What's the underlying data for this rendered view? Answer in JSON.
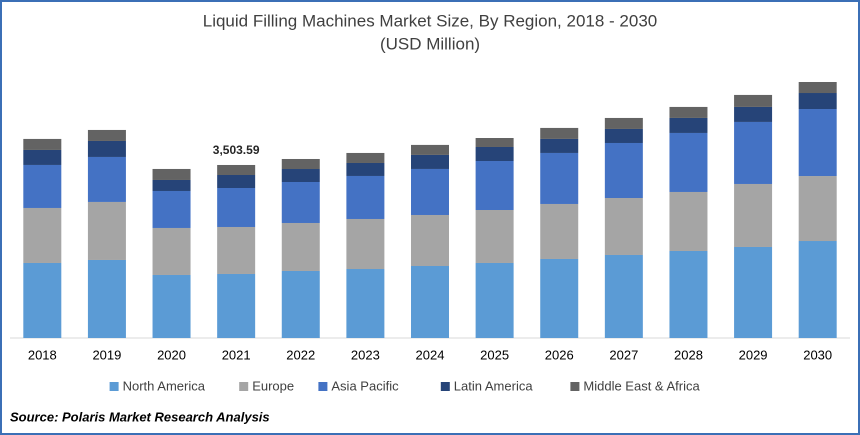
{
  "chart_data": {
    "type": "stacked-bar",
    "title": "Liquid Filling Machines Market Size, By Region, 2018 - 2030",
    "subtitle": "(USD Million)",
    "categories": [
      "2018",
      "2019",
      "2020",
      "2021",
      "2022",
      "2023",
      "2024",
      "2025",
      "2026",
      "2027",
      "2028",
      "2029",
      "2030"
    ],
    "series": [
      {
        "name": "North America",
        "color": "#5b9bd5",
        "values": [
          1519,
          1580,
          1276,
          1296.2,
          1357,
          1397,
          1458,
          1519,
          1600,
          1681,
          1762,
          1843,
          1964
        ]
      },
      {
        "name": "Europe",
        "color": "#a5a5a5",
        "values": [
          1114,
          1175,
          952,
          951.8,
          972,
          1013,
          1033,
          1073,
          1114,
          1154,
          1195,
          1276,
          1316
        ]
      },
      {
        "name": "Asia Pacific",
        "color": "#4472c4",
        "values": [
          871,
          911,
          749,
          789.6,
          830,
          871,
          932,
          992,
          1033,
          1114,
          1195,
          1256,
          1357
        ]
      },
      {
        "name": "Latin America",
        "color": "#264478",
        "values": [
          304,
          324,
          223,
          263.2,
          263,
          263,
          284,
          284,
          284,
          284,
          304,
          304,
          324
        ]
      },
      {
        "name": "Middle East & Africa",
        "color": "#636363",
        "values": [
          223,
          223,
          223,
          202.79,
          203,
          203,
          203,
          182,
          223,
          223,
          223,
          243,
          223
        ]
      }
    ],
    "annotation": {
      "category": "2021",
      "text": "3,503.59"
    },
    "source": "Source: Polaris  Market Research Analysis"
  }
}
